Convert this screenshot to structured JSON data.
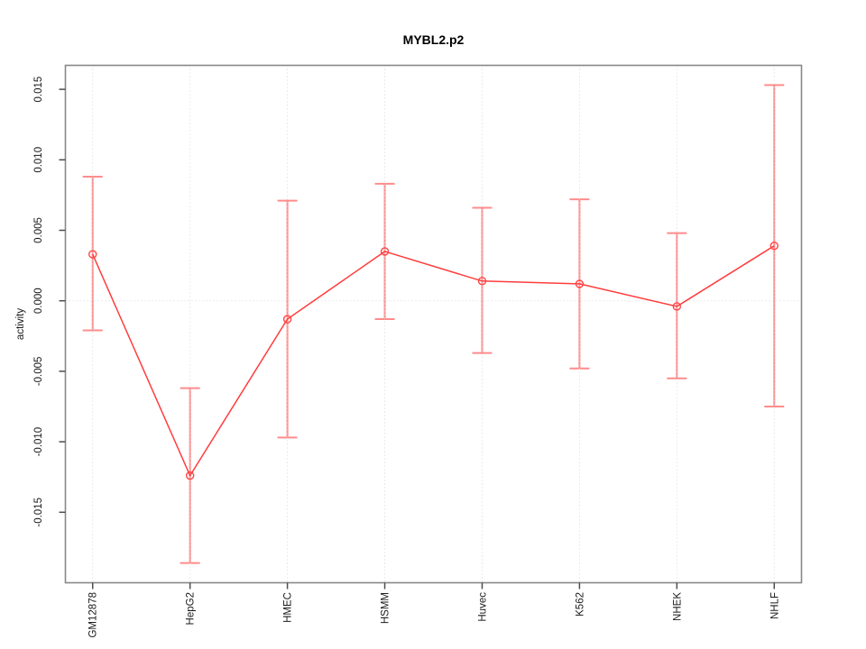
{
  "figure": {
    "title": "MYBL2.p2",
    "ylabel": "activity"
  },
  "chart_data": {
    "type": "line",
    "title": "MYBL2.p2",
    "xlabel": "",
    "ylabel": "activity",
    "categories": [
      "GM12878",
      "HepG2",
      "HMEC",
      "HSMM",
      "Huvec",
      "K562",
      "NHEK",
      "NHLF"
    ],
    "series": [
      {
        "name": "activity",
        "values": [
          0.0033,
          -0.0124,
          -0.0013,
          0.0035,
          0.0014,
          0.0012,
          -0.0004,
          0.0039
        ],
        "error_low": [
          -0.0021,
          -0.0186,
          -0.0097,
          -0.0013,
          -0.0037,
          -0.0048,
          -0.0055,
          -0.0075
        ],
        "error_high": [
          0.0088,
          -0.0062,
          0.0071,
          0.0083,
          0.0066,
          0.0072,
          0.0048,
          0.0153
        ]
      }
    ],
    "marker": "open-circle",
    "ylim": [
      -0.02,
      0.0167
    ],
    "yticks": [
      0.015,
      0.01,
      0.005,
      0.0,
      -0.005,
      -0.01,
      -0.015
    ],
    "grid": {
      "vertical_at_categories": true,
      "horizontal_at_zero": true,
      "style": "dotted"
    },
    "legend_position": "none",
    "colors": {
      "line": "#ff3d3d",
      "marker": "#ff4545",
      "error_bar": "#ff8c8c",
      "grid": "#d6d6d6",
      "box": "#888888",
      "tick": "#4d4d4d",
      "text": "#1a1a1a",
      "background": "#ffffff"
    }
  }
}
